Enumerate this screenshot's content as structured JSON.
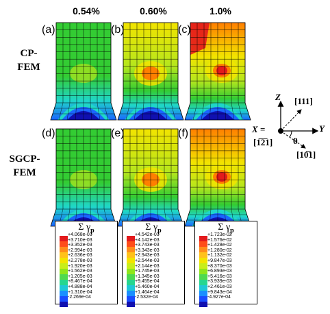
{
  "strain_labels": [
    "0.54%",
    "0.60%",
    "1.0%"
  ],
  "row_labels": [
    {
      "line1": "CP-",
      "line2": "FEM"
    },
    {
      "line1": "SGCP-",
      "line2": "FEM"
    }
  ],
  "panel_tags": [
    "(a)",
    "(b)",
    "(c)",
    "(d)",
    "(e)",
    "(f)"
  ],
  "panel_fields": [
    {
      "level": 0.35
    },
    {
      "level": 0.6
    },
    {
      "level": 0.85
    },
    {
      "level": 0.3
    },
    {
      "level": 0.5
    },
    {
      "level": 0.78
    }
  ],
  "colors": {
    "red": "#e31a1c",
    "orange": "#ff7f00",
    "yellow": "#f2e400",
    "yellowgreen": "#b5e61d",
    "green": "#33cc33",
    "cyan": "#1fd6c8",
    "blue": "#1a66ff",
    "navy": "#1010b0"
  },
  "coordinate_system": {
    "z_label": "Z",
    "y_label": "Y",
    "x_label": "X =",
    "x_direction": "[1̅2̅1]",
    "dir_111": "[111]",
    "dir_101": "[10̅1]",
    "theta": "θ"
  },
  "legend_title": {
    "sigma": "Σ γ",
    "sub": "p"
  },
  "legend_swatch_colors": [
    "#e31a1c",
    "#ff4d1a",
    "#ff8c1a",
    "#ffc21a",
    "#f2e400",
    "#c8ee1a",
    "#8fe61a",
    "#4fd94f",
    "#26d68f",
    "#1fc8d6",
    "#1a8fff",
    "#1a4dff",
    "#1010b0"
  ],
  "legends": [
    {
      "labels": [
        "+4.068e-03",
        "+3.710e-03",
        "+3.352e-03",
        "+2.994e-03",
        "+2.636e-03",
        "+2.278e-03",
        "+1.920e-03",
        "+1.562e-03",
        "+1.205e-03",
        "+8.467e-04",
        "+4.888e-04",
        "+1.310e-04",
        "-2.269e-04"
      ]
    },
    {
      "labels": [
        "+4.542e-03",
        "+4.142e-03",
        "+3.743e-03",
        "+3.343e-03",
        "+2.943e-03",
        "+2.544e-03",
        "+2.144e-03",
        "+1.745e-03",
        "+1.345e-03",
        "+9.455e-04",
        "+5.460e-04",
        "+1.464e-04",
        "-2.532e-04"
      ]
    },
    {
      "labels": [
        "+1.723e-02",
        "+1.576e-02",
        "+1.428e-02",
        "+1.280e-02",
        "+1.132e-02",
        "+9.847e-03",
        "+8.370e-03",
        "+6.893e-03",
        "+5.416e-03",
        "+3.939e-03",
        "+2.461e-03",
        "+9.843e-04",
        "-4.927e-04"
      ]
    }
  ]
}
